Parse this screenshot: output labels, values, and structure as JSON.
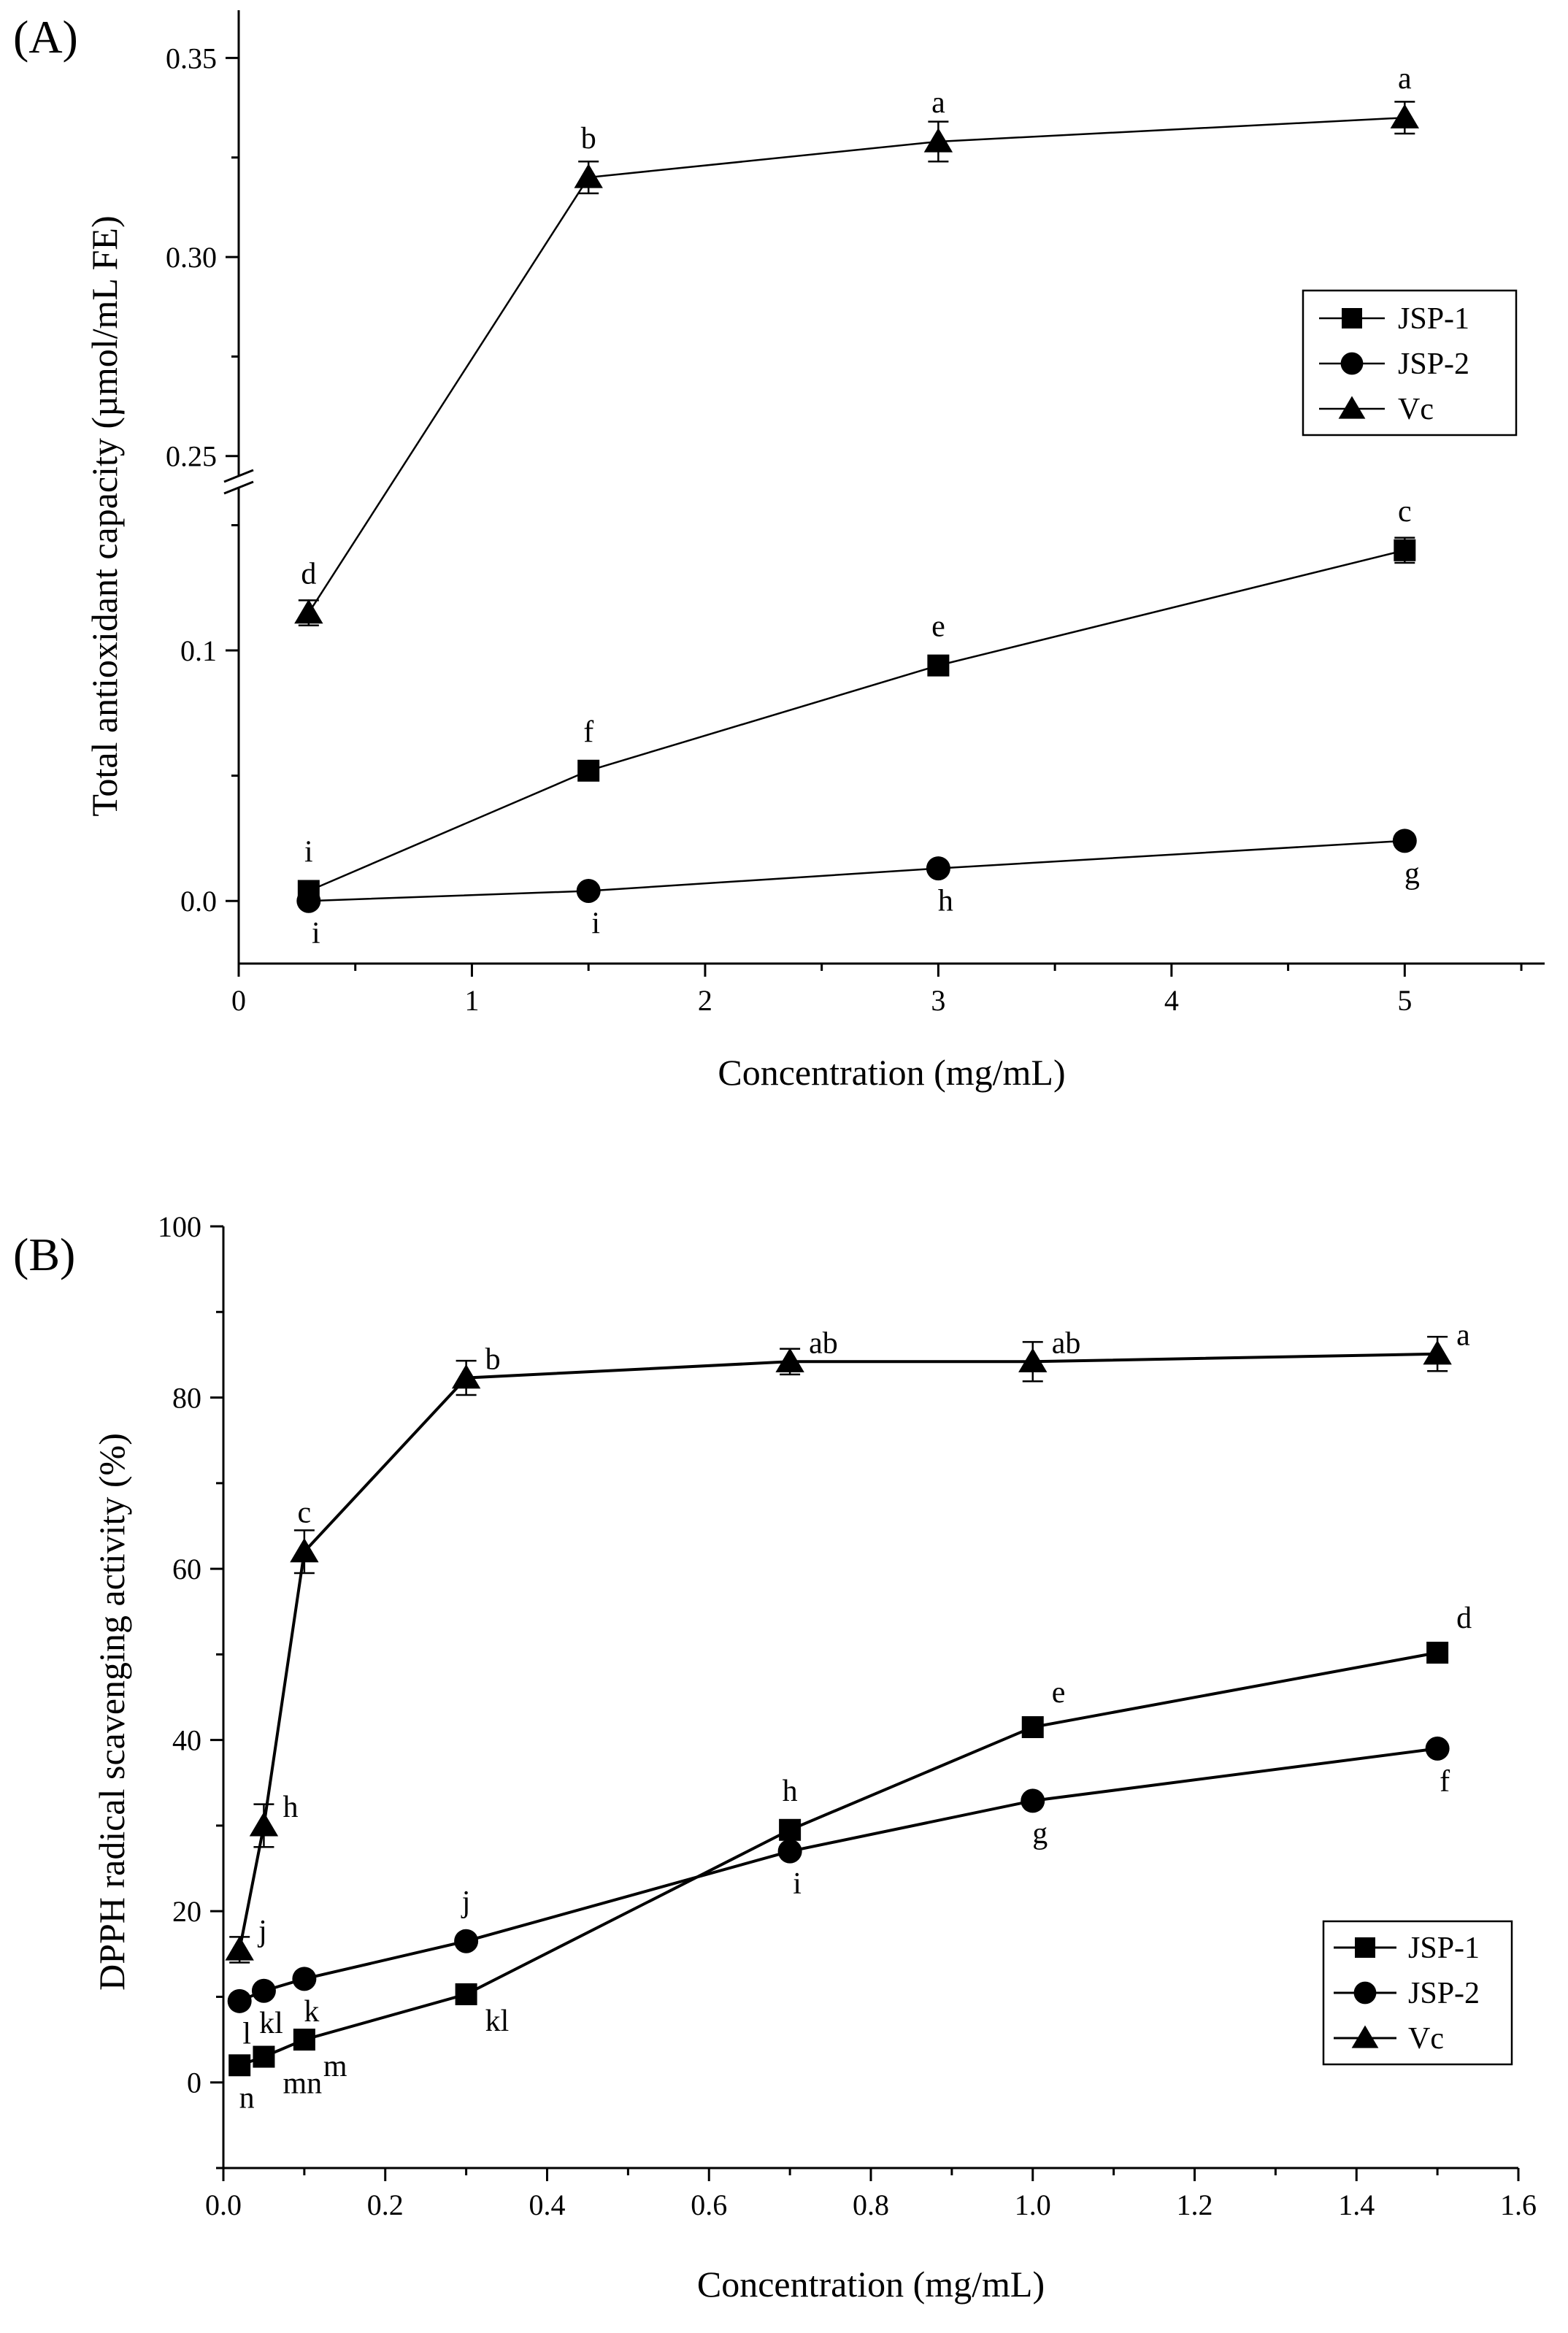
{
  "chart_data": [
    {
      "type": "line",
      "panel_label": "(A)",
      "xlabel": "Concentration (mg/mL)",
      "ylabel": "Total antioxidant capacity (µmol/mL FE)",
      "xlim": [
        0,
        5.6
      ],
      "x_ticks": [
        0,
        1,
        2,
        3,
        4,
        5
      ],
      "ylim_lower": [
        -0.025,
        0.165
      ],
      "ylim_upper": [
        0.245,
        0.362
      ],
      "y_ticks_lower": [
        0.0,
        0.1
      ],
      "y_ticks_upper": [
        0.25,
        0.3,
        0.35
      ],
      "y_tick_labels_lower": [
        "0.0",
        "0.1"
      ],
      "y_tick_labels_upper": [
        "0.25",
        "0.30",
        "0.35"
      ],
      "axis_break": true,
      "legend": {
        "position": "right",
        "entries": [
          "JSP-1",
          "JSP-2",
          "Vc"
        ]
      },
      "series": [
        {
          "name": "JSP-1",
          "marker": "square",
          "x": [
            0.3,
            1.5,
            3,
            5
          ],
          "y": [
            0.004,
            0.052,
            0.094,
            0.14
          ],
          "err": [
            0.003,
            0.003,
            0.003,
            0.005
          ],
          "labels": [
            "i",
            "f",
            "e",
            "c"
          ],
          "label_pos": [
            "above",
            "above",
            "above",
            "above"
          ]
        },
        {
          "name": "JSP-2",
          "marker": "circle",
          "x": [
            0.3,
            1.5,
            3,
            5
          ],
          "y": [
            0.0,
            0.004,
            0.013,
            0.024
          ],
          "err": [
            0.002,
            0.002,
            0.002,
            0.002
          ],
          "labels": [
            "i",
            "i",
            "h",
            "g"
          ],
          "label_pos": [
            "below",
            "below",
            "below",
            "below"
          ]
        },
        {
          "name": "Vc",
          "marker": "triangle",
          "x": [
            0.3,
            1.5,
            3,
            5
          ],
          "y": [
            0.115,
            0.32,
            0.329,
            0.335
          ],
          "err": [
            0.005,
            0.004,
            0.005,
            0.004
          ],
          "labels": [
            "d",
            "b",
            "a",
            "a"
          ],
          "label_pos": [
            "above",
            "above",
            "above",
            "above"
          ]
        }
      ]
    },
    {
      "type": "line",
      "panel_label": "(B)",
      "xlabel": "Concentration (mg/mL)",
      "ylabel": "DPPH radical scavenging activity (%)",
      "xlim": [
        0,
        1.6
      ],
      "ylim": [
        -10,
        100
      ],
      "x_ticks": [
        0.0,
        0.2,
        0.4,
        0.6,
        0.8,
        1.0,
        1.2,
        1.4,
        1.6
      ],
      "x_tick_labels": [
        "0.0",
        "0.2",
        "0.4",
        "0.6",
        "0.8",
        "1.0",
        "1.2",
        "1.4",
        "1.6"
      ],
      "y_ticks": [
        0,
        20,
        40,
        60,
        80,
        100
      ],
      "y_tick_labels": [
        "0",
        "20",
        "40",
        "60",
        "80",
        "100"
      ],
      "legend": {
        "position": "bottom-right",
        "entries": [
          "JSP-1",
          "JSP-2",
          "Vc"
        ]
      },
      "series": [
        {
          "name": "JSP-1",
          "marker": "square",
          "x": [
            0.02,
            0.05,
            0.1,
            0.3,
            0.7,
            1.0,
            1.5
          ],
          "y": [
            2,
            3,
            5,
            10.3,
            29.5,
            41.5,
            50.2
          ],
          "labels": [
            "n",
            "mn",
            "m",
            "kl",
            "h",
            "e",
            "d"
          ],
          "label_pos": [
            "below",
            "below-right",
            "below-right",
            "below-right",
            "above",
            "above-right",
            "above-right"
          ]
        },
        {
          "name": "JSP-2",
          "marker": "circle",
          "x": [
            0.02,
            0.05,
            0.1,
            0.3,
            0.7,
            1.0,
            1.5
          ],
          "y": [
            9.5,
            10.7,
            12.1,
            16.5,
            27,
            32.9,
            39
          ],
          "labels": [
            "l",
            "kl",
            "k",
            "j",
            "i",
            "g",
            "f"
          ],
          "label_pos": [
            "below",
            "below",
            "below",
            "above",
            "below",
            "below",
            "below"
          ]
        },
        {
          "name": "Vc",
          "marker": "triangle",
          "x": [
            0.02,
            0.05,
            0.1,
            0.3,
            0.7,
            1.0,
            1.5
          ],
          "y": [
            15.5,
            30,
            62,
            82.3,
            84.2,
            84.2,
            85.1
          ],
          "err": [
            1.5,
            2.5,
            2.5,
            2,
            1.5,
            2.3,
            2
          ],
          "labels": [
            "j",
            "h",
            "c",
            "b",
            "ab",
            "ab",
            "a"
          ],
          "label_pos": [
            "right",
            "right",
            "above",
            "right",
            "right",
            "right",
            "right"
          ]
        }
      ]
    }
  ]
}
